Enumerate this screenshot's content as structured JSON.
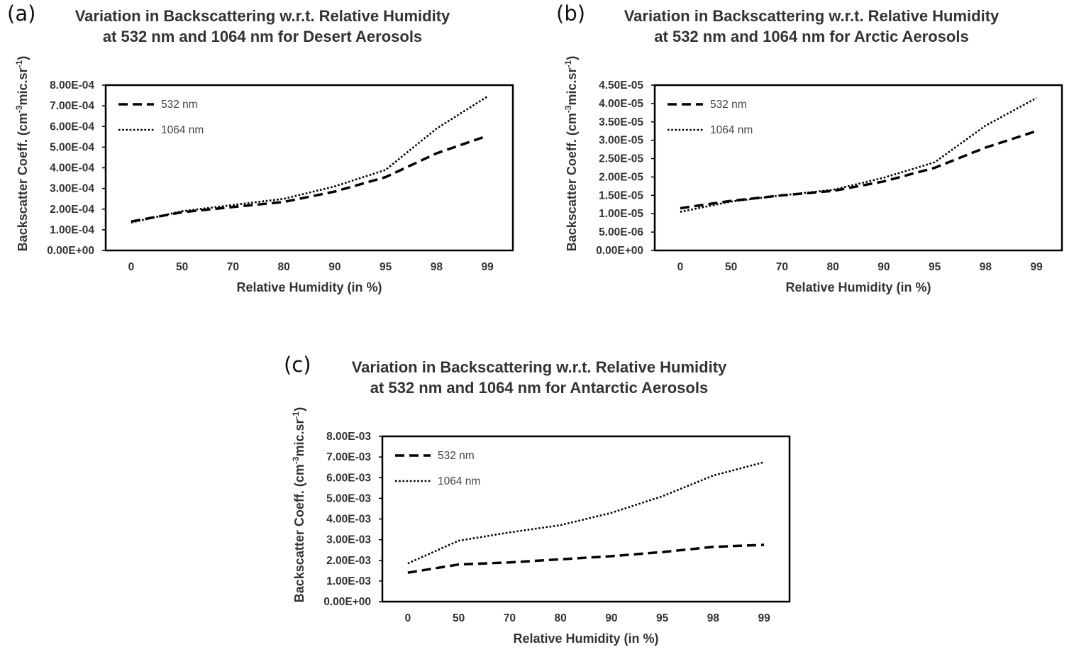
{
  "chart_data": [
    {
      "panel": "(a)",
      "type": "line",
      "title": "Variation in Backscattering w.r.t. Relative Humidity at 532 nm and 1064 nm for Desert Aerosols",
      "xlabel": "Relative Humidity (in %)",
      "ylabel_main": "Backscatter Coeff. (cm",
      "ylabel_sup1": "-3",
      "ylabel_mid": "mic.sr",
      "ylabel_sup2": "-1",
      "ylabel_end": ")",
      "categories": [
        "0",
        "50",
        "70",
        "80",
        "90",
        "95",
        "98",
        "99"
      ],
      "ylim": [
        0,
        0.0008
      ],
      "yticks": [
        "0.00E+00",
        "1.00E-04",
        "2.00E-04",
        "3.00E-04",
        "4.00E-04",
        "5.00E-04",
        "6.00E-04",
        "7.00E-04",
        "8.00E-04"
      ],
      "legend_position": "top-left",
      "series": [
        {
          "name": "532 nm",
          "style": "dashed",
          "values": [
            0.00014,
            0.000185,
            0.00021,
            0.000235,
            0.000285,
            0.000355,
            0.00047,
            0.000555
          ]
        },
        {
          "name": "1064 nm",
          "style": "dotted",
          "values": [
            0.000135,
            0.00019,
            0.00022,
            0.00025,
            0.00031,
            0.00039,
            0.00059,
            0.000745
          ]
        }
      ]
    },
    {
      "panel": "(b)",
      "type": "line",
      "title": "Variation in Backscattering w.r.t. Relative Humidity at 532 nm and 1064 nm for Arctic Aerosols",
      "xlabel": "Relative Humidity (in %)",
      "ylabel_main": "Backscatter Coeff. (cm",
      "ylabel_sup1": "-3",
      "ylabel_mid": "mic.sr",
      "ylabel_sup2": "-1",
      "ylabel_end": ")",
      "categories": [
        "0",
        "50",
        "70",
        "80",
        "90",
        "95",
        "98",
        "99"
      ],
      "ylim": [
        0,
        4.5e-05
      ],
      "yticks": [
        "0.00E+00",
        "5.00E-06",
        "1.00E-05",
        "1.50E-05",
        "2.00E-05",
        "2.50E-05",
        "3.00E-05",
        "3.50E-05",
        "4.00E-05",
        "4.50E-05"
      ],
      "legend_position": "top-left",
      "series": [
        {
          "name": "532 nm",
          "style": "dashed",
          "values": [
            1.15e-05,
            1.35e-05,
            1.5e-05,
            1.62e-05,
            1.88e-05,
            2.25e-05,
            2.8e-05,
            3.25e-05
          ]
        },
        {
          "name": "1064 nm",
          "style": "dotted",
          "values": [
            1.05e-05,
            1.33e-05,
            1.5e-05,
            1.65e-05,
            1.98e-05,
            2.4e-05,
            3.4e-05,
            4.15e-05
          ]
        }
      ]
    },
    {
      "panel": "(c)",
      "type": "line",
      "title": "Variation in Backscattering w.r.t. Relative Humidity at 532 nm and 1064 nm for Antarctic Aerosols",
      "xlabel": "Relative Humidity (in %)",
      "ylabel_main": "Backscatter Coeff. (cm",
      "ylabel_sup1": "-3",
      "ylabel_mid": "mic.sr",
      "ylabel_sup2": "-1",
      "ylabel_end": ")",
      "categories": [
        "0",
        "50",
        "70",
        "80",
        "90",
        "95",
        "98",
        "99"
      ],
      "ylim": [
        0,
        0.008
      ],
      "yticks": [
        "0.00E+00",
        "1.00E-03",
        "2.00E-03",
        "3.00E-03",
        "4.00E-03",
        "5.00E-03",
        "6.00E-03",
        "7.00E-03",
        "8.00E-03"
      ],
      "legend_position": "top-left",
      "series": [
        {
          "name": "532 nm",
          "style": "dashed",
          "values": [
            0.0014,
            0.0018,
            0.0019,
            0.00205,
            0.0022,
            0.0024,
            0.00265,
            0.00275
          ]
        },
        {
          "name": "1064 nm",
          "style": "dotted",
          "values": [
            0.00185,
            0.00295,
            0.00335,
            0.0037,
            0.0043,
            0.0051,
            0.0061,
            0.00675
          ]
        }
      ]
    }
  ]
}
